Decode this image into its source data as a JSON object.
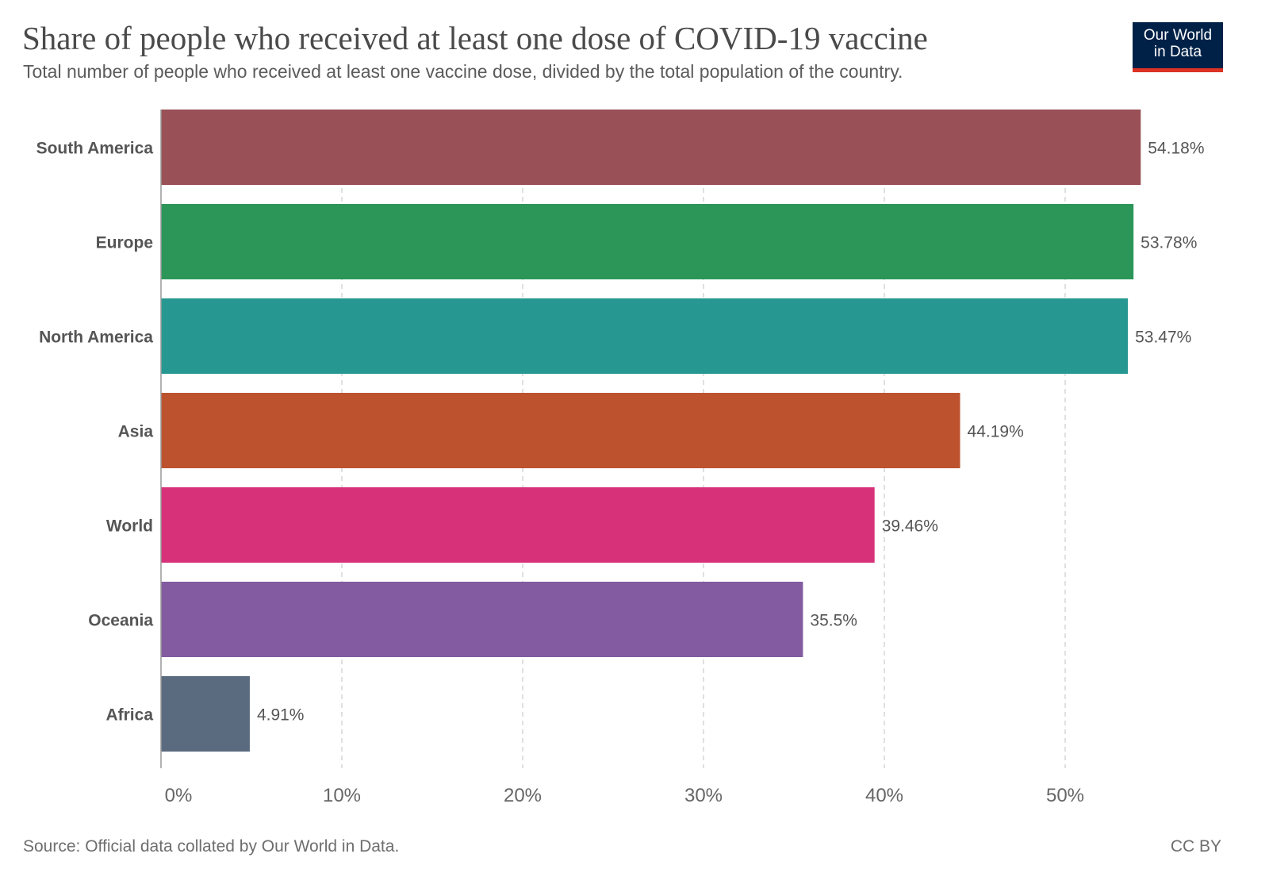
{
  "header": {
    "title": "Share of people who received at least one dose of COVID-19 vaccine",
    "subtitle": "Total number of people who received at least one vaccine dose, divided by the total population of the country.",
    "logo_line1": "Our World",
    "logo_line2": "in Data"
  },
  "footer": {
    "source": "Source: Official data collated by Our World in Data.",
    "license": "CC BY"
  },
  "chart_data": {
    "type": "bar",
    "orientation": "horizontal",
    "title": "Share of people who received at least one dose of COVID-19 vaccine",
    "categories": [
      "South America",
      "Europe",
      "North America",
      "Asia",
      "World",
      "Oceania",
      "Africa"
    ],
    "values": [
      54.18,
      53.78,
      53.47,
      44.19,
      39.46,
      35.5,
      4.91
    ],
    "value_labels": [
      "54.18%",
      "53.78%",
      "53.47%",
      "44.19%",
      "39.46%",
      "35.5%",
      "4.91%"
    ],
    "colors": [
      "#9a5057",
      "#2c9659",
      "#279891",
      "#bd532e",
      "#d63179",
      "#835ba0",
      "#5a6a7f"
    ],
    "xticks": [
      0,
      10,
      20,
      30,
      40,
      50
    ],
    "xtick_labels": [
      "0%",
      "10%",
      "20%",
      "30%",
      "40%",
      "50%"
    ],
    "xlim": [
      0,
      54.18
    ],
    "grid": "vertical dashed"
  }
}
